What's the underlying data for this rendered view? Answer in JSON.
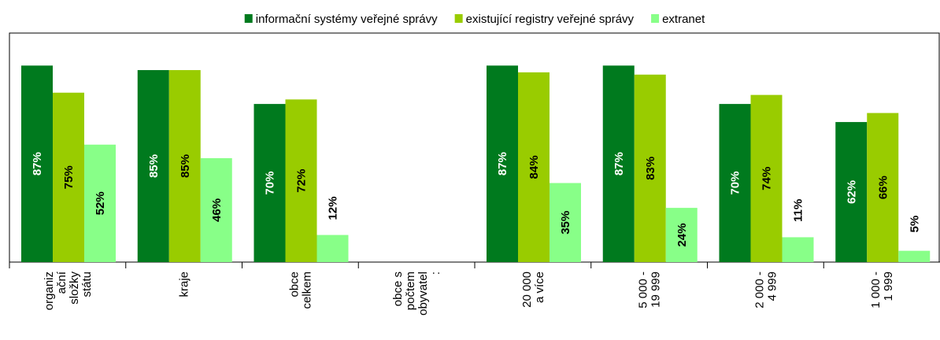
{
  "chart_data": {
    "type": "bar",
    "categories": [
      "organiz\nační\nsložky\nstátu",
      "kraje",
      "obce\ncelkem",
      "obce s\npočtem\nobyvatel\n:",
      "20 000\na více",
      "5 000 -\n19 999",
      "2 000 -\n4 999",
      "1 000 -\n1 999"
    ],
    "series": [
      {
        "name": "informační systémy veřejné správy",
        "color": "#007a1e",
        "label_color": "#ffffff",
        "values": [
          87,
          85,
          70,
          null,
          87,
          87,
          70,
          62
        ],
        "value_labels": [
          "87%",
          "85%",
          "70%",
          null,
          "87%",
          "87%",
          "70%",
          "62%"
        ]
      },
      {
        "name": "existující registry veřejné správy",
        "color": "#99cc00",
        "label_color": "#000000",
        "values": [
          75,
          85,
          72,
          null,
          84,
          83,
          74,
          66
        ],
        "value_labels": [
          "75%",
          "85%",
          "72%",
          null,
          "84%",
          "83%",
          "74%",
          "66%"
        ]
      },
      {
        "name": "extranet",
        "color": "#88ff88",
        "label_color": "#000000",
        "values": [
          52,
          46,
          12,
          null,
          35,
          24,
          11,
          5
        ],
        "value_labels": [
          "52%",
          "46%",
          "12%",
          null,
          "35%",
          "24%",
          "11%",
          "5%"
        ]
      }
    ],
    "ylim": [
      0,
      100
    ],
    "legend": "top"
  }
}
